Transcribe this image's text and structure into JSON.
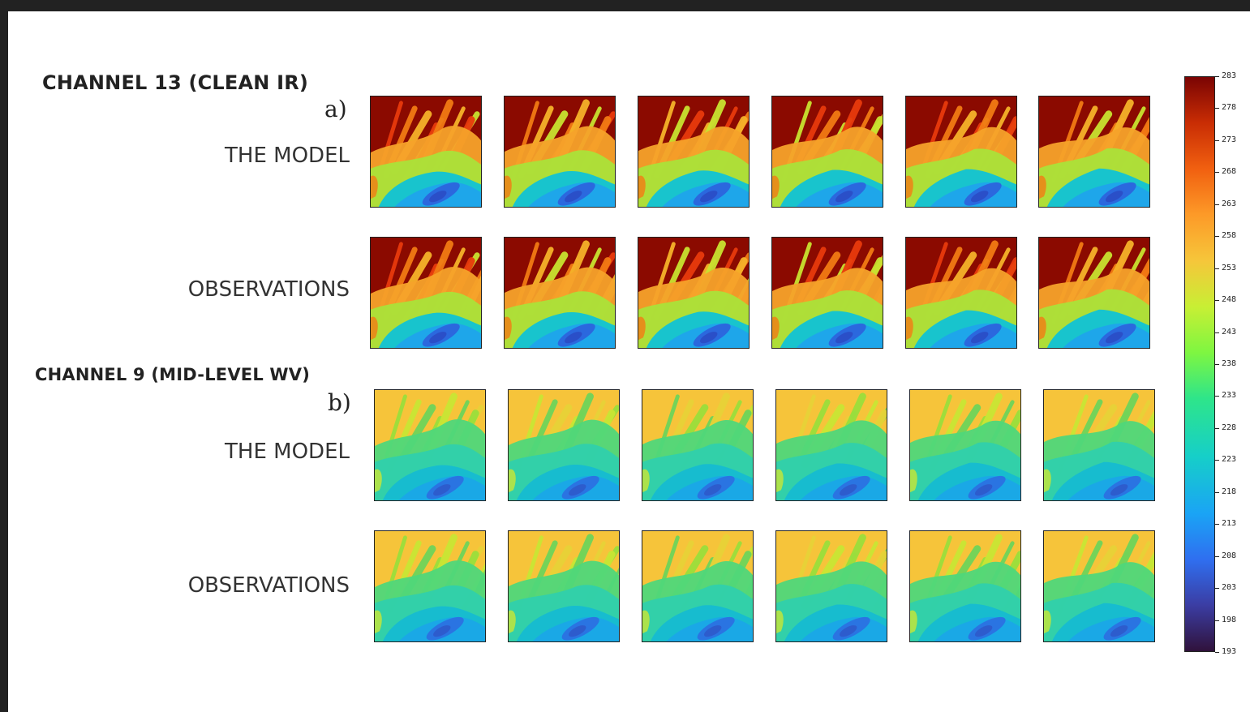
{
  "figure": {
    "sections": [
      {
        "title": "CHANNEL 13 (CLEAN IR)",
        "panel": "a)",
        "scheme": "ir",
        "rows": [
          {
            "label": "THE MODEL",
            "variant": "model"
          },
          {
            "label": "OBSERVATIONS",
            "variant": "obs"
          }
        ]
      },
      {
        "title": "CHANNEL 9 (MID-LEVEL WV)",
        "panel": "b)",
        "scheme": "wv",
        "rows": [
          {
            "label": "THE MODEL",
            "variant": "model"
          },
          {
            "label": "OBSERVATIONS",
            "variant": "obs"
          }
        ]
      }
    ],
    "frames_per_row": 6,
    "colorbar": {
      "ticks": [
        "283",
        "278",
        "273",
        "268",
        "263",
        "258",
        "253",
        "248",
        "243",
        "238",
        "233",
        "228",
        "223",
        "218",
        "213",
        "208",
        "203",
        "198",
        "193"
      ],
      "colormap": "turbo",
      "min": 193,
      "max": 283
    },
    "colors": {
      "ir_background": "#8b0a00",
      "wv_background": "#f6c43a"
    }
  }
}
